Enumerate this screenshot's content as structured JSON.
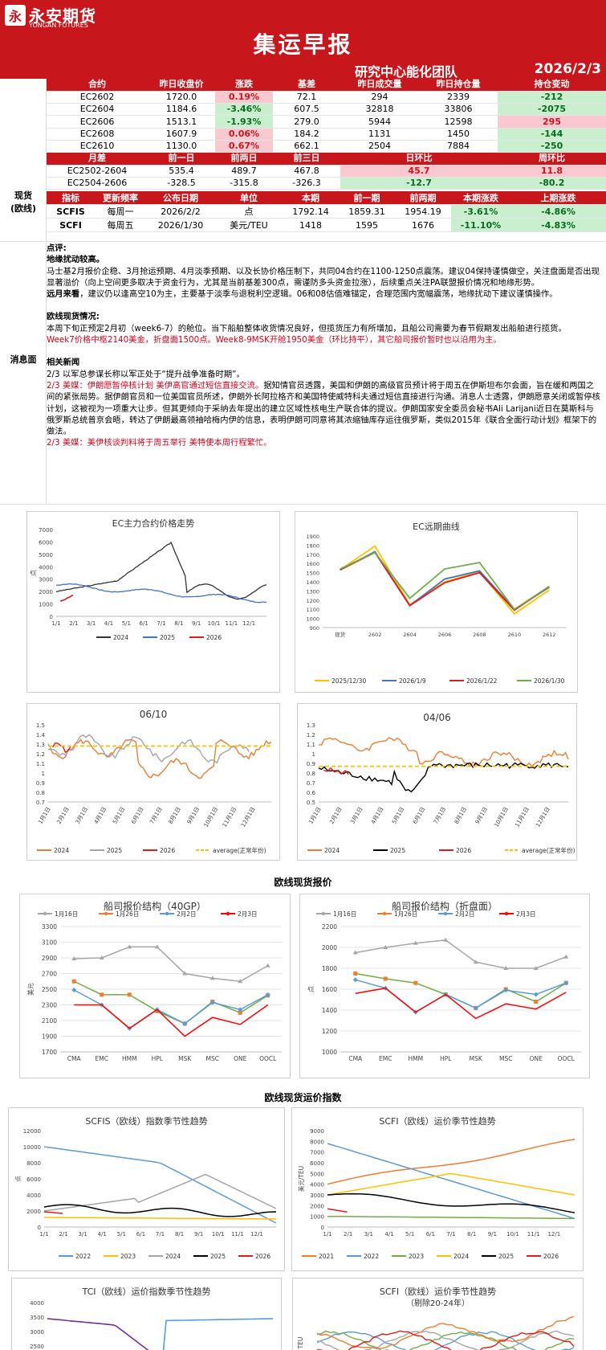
{
  "header": {
    "logo_cn": "永安期货",
    "logo_en": "YONGAN FUTURES",
    "logo_mark": "永",
    "title": "集运早报",
    "team": "研究中心能化团队",
    "date": "2026/2/3"
  },
  "futures": {
    "headers": [
      "合约",
      "昨日收盘价",
      "涨跌",
      "基差",
      "昨日成交量",
      "昨日持仓量",
      "持仓变动"
    ],
    "rows": [
      [
        "EC2602",
        "1720.0",
        "0.19%",
        "72.1",
        "294",
        "2339",
        "-212"
      ],
      [
        "EC2604",
        "1184.6",
        "-3.46%",
        "607.5",
        "32818",
        "33806",
        "-2075"
      ],
      [
        "EC2606",
        "1513.1",
        "-1.93%",
        "279.0",
        "5944",
        "12598",
        "295"
      ],
      [
        "EC2608",
        "1607.9",
        "0.06%",
        "184.2",
        "1131",
        "1450",
        "-144"
      ],
      [
        "EC2610",
        "1130.0",
        "0.67%",
        "662.1",
        "2504",
        "7884",
        "-250"
      ]
    ],
    "spread_headers": [
      "月差",
      "前一日",
      "前两日",
      "前三日",
      "日环比",
      "周环比"
    ],
    "spread_rows": [
      [
        "EC2502-2604",
        "535.4",
        "489.7",
        "467.8",
        "45.7",
        "11.8"
      ],
      [
        "EC2504-2606",
        "-328.5",
        "-315.8",
        "-326.3",
        "-12.7",
        "-80.2"
      ]
    ]
  },
  "spot": {
    "label_line1": "现货",
    "label_line2": "(欧线)",
    "headers": [
      "指标",
      "更新频率",
      "公布日期",
      "单位",
      "本期",
      "前一期",
      "前两期",
      "本期涨跌",
      "上期涨跌"
    ],
    "rows": [
      [
        "SCFIS",
        "每周一",
        "2026/2/2",
        "点",
        "1792.14",
        "1859.31",
        "1954.19",
        "-3.61%",
        "-4.86%"
      ],
      [
        "SCFI",
        "每周五",
        "2026/1/30",
        "美元/TEU",
        "1418",
        "1595",
        "1676",
        "-11.10%",
        "-4.83%"
      ]
    ]
  },
  "news": {
    "label": "消息面",
    "comment_title": "点评:",
    "l1": "地缘扰动较高。",
    "l2": "马士基2月报价企稳、3月抢运预期、4月淡季预期、以及长协价格压制下，共同04合约在1100-1250点震荡。建议04保持谨慎做空，关注盘面是否出现显著溢价（向上空间更多取决于资金行为，尤其是当前基差300点，需谨防多头资金拉涨），后续重点关注PA联盟报价情况和地缘形势。",
    "l3a": "远月来看",
    "l3b": "，建议仍以逢高空10为主，主要基于淡季与退税利空逻辑。06和08估值难锚定，合理范围内宽幅震荡，地缘扰动下建议谨慎操作。",
    "spot_title": "欧线现货情况:",
    "s1": "本周下旬正预定2月初（week6-7）的舱位。当下船舶整体收货情况良好，但揽货压力有所增加，且船公司需要为春节假期发出船舶进行揽货。",
    "s2": "Week7价格中枢2140美金，折盘面1500点。Week8-9MSK开舱1950美金（环比持平），其它船司报价暂时也以沿用为主。",
    "related_title": "相关新闻",
    "n1": "2/3 以军总参谋长称以军正处于“提升战争准备时期”。",
    "n2a": "2/3 美媒：伊朗愿暂停核计划 美伊高官通过短信直接交流。",
    "n2b": "据知情官员透露，美国和伊朗的高级官员预计将于周五在伊斯坦布尔会面，旨在缓和两国之间的紧张局势。据伊朗官员和一位美国官员所述，伊朗外长阿拉格齐和美国特使威特科夫通过短信直接进行沟通。消息人士透露，伊朗愿意关闭或暂停核计划，这被视为一项重大让步。但其更倾向于采纳去年提出的建立区域性核电生产联合体的提议。伊朗国家安全委员会秘书Ali Larijani近日在莫斯科与俄罗斯总统普京会晤，转达了伊朗最高领袖哈梅内伊的信息，表明伊朗可同意将其浓缩铀库存运往俄罗斯，类似2015年《联合全面行动计划》框架下的做法。",
    "n3": "2/3 美媒：美伊核谈判料将于周五举行 美特使本周行程繁忙。"
  },
  "charts": {
    "ec_main": {
      "title": "EC主力合约价格走势",
      "ylabel": "点",
      "yticks": [
        "0",
        "1000",
        "2000",
        "3000",
        "4000",
        "5000",
        "6000",
        "7000"
      ],
      "xticks": [
        "1/1",
        "2/1",
        "3/1",
        "4/1",
        "5/1",
        "6/1",
        "7/1",
        "8/1",
        "9/1",
        "10/1",
        "11/1",
        "12/1"
      ],
      "legend": [
        "2024",
        "2025",
        "2026"
      ],
      "colors": [
        "#333333",
        "#4472c4",
        "#e31a1c"
      ]
    },
    "ec_curve": {
      "title": "EC远期曲线",
      "yticks": [
        "900",
        "1000",
        "1100",
        "1200",
        "1300",
        "1400",
        "1500",
        "1600",
        "1700",
        "1800",
        "1900"
      ],
      "xticks": [
        "现货",
        "2602",
        "2604",
        "2606",
        "2608",
        "2610",
        "2612"
      ],
      "legend": [
        "2025/12/30",
        "2026/1/9",
        "2026/1/22",
        "2026/1/30"
      ],
      "colors": [
        "#ffc000",
        "#4472c4",
        "#e31a1c",
        "#70ad47"
      ]
    },
    "r0610": {
      "title": "06/10",
      "yticks": [
        "0.7",
        "0.8",
        "0.9",
        "1",
        "1.1",
        "1.2",
        "1.3",
        "1.4",
        "1.5"
      ],
      "xticks": [
        "1月1日",
        "2月1日",
        "3月1日",
        "4月1日",
        "5月1日",
        "6月1日",
        "7月1日",
        "8月1日",
        "9月1日",
        "10月1日",
        "11月1日",
        "12月1日"
      ],
      "legend": [
        "2024",
        "2025",
        "2026",
        "average(正常年份)"
      ]
    },
    "r0406": {
      "title": "04/06",
      "yticks": [
        "0.5",
        "0.6",
        "0.7",
        "0.8",
        "0.9",
        "1",
        "1.1",
        "1.2",
        "1.3"
      ],
      "xticks": [
        "1月1日",
        "2月1日",
        "3月1日",
        "4月1日",
        "5月1日",
        "6月1日",
        "7月1日",
        "8月1日",
        "9月1日",
        "10月1日",
        "11月1日",
        "12月1日"
      ],
      "legend": [
        "2024",
        "2025",
        "2026",
        "average(正常年份)"
      ]
    },
    "spot_section": "欧线现货报价",
    "quote40": {
      "title": "船司报价结构（40GP）",
      "ylabel": "美元",
      "yticks": [
        "1700",
        "1900",
        "2100",
        "2300",
        "2500",
        "2700",
        "2900",
        "3100",
        "3300"
      ],
      "xticks": [
        "CMA",
        "EMC",
        "HMM",
        "HPL",
        "MSK",
        "MSC",
        "ONE",
        "OOCL"
      ],
      "legend": [
        "1月16日",
        "1月26日",
        "2月2日",
        "2月3日"
      ]
    },
    "quoteDisc": {
      "title": "船司报价结构（折盘面）",
      "ylabel": "点",
      "yticks": [
        "1000",
        "1200",
        "1400",
        "1600",
        "1800",
        "2000",
        "2200"
      ],
      "xticks": [
        "CMA",
        "EMC",
        "HMM",
        "HPL",
        "MSK",
        "MSC",
        "ONE",
        "OOCL"
      ],
      "legend": [
        "1月16日",
        "1月26日",
        "2月2日",
        "2月3日"
      ]
    },
    "index_section": "欧线现货运价指数",
    "scfis": {
      "title": "SCFIS（欧线）指数季节性趋势",
      "ylabel": "点",
      "yticks": [
        "0",
        "2000",
        "4000",
        "6000",
        "8000",
        "10000",
        "12000"
      ],
      "xticks": [
        "1/1",
        "2/1",
        "3/1",
        "4/1",
        "5/1",
        "6/1",
        "7/1",
        "8/1",
        "9/1",
        "10/1",
        "11/1",
        "12/1"
      ],
      "legend": [
        "2022",
        "2023",
        "2024",
        "2025",
        "2026"
      ]
    },
    "scfi": {
      "title": "SCFI（欧线）运价季节性趋势",
      "ylabel": "美元/TEU",
      "yticks": [
        "0",
        "1000",
        "2000",
        "3000",
        "4000",
        "5000",
        "6000",
        "7000",
        "8000",
        "9000"
      ],
      "xticks": [
        "1/1",
        "2/1",
        "3/1",
        "4/1",
        "5/1",
        "6/1",
        "7/1",
        "8/1",
        "9/1",
        "10/1",
        "11/1",
        "12/1"
      ],
      "legend": [
        "2021",
        "2022",
        "2023",
        "2024",
        "2025",
        "2026"
      ]
    },
    "tci": {
      "title": "TCI（欧线）运价指数季节性趋势",
      "yticks": [
        "2000",
        "2500",
        "3000",
        "3500",
        "4000"
      ]
    },
    "scfi2": {
      "title": "SCFI（欧线）运价季节性趋势",
      "subtitle": "（剔除20-24年）",
      "ylabel": "TEU"
    }
  }
}
